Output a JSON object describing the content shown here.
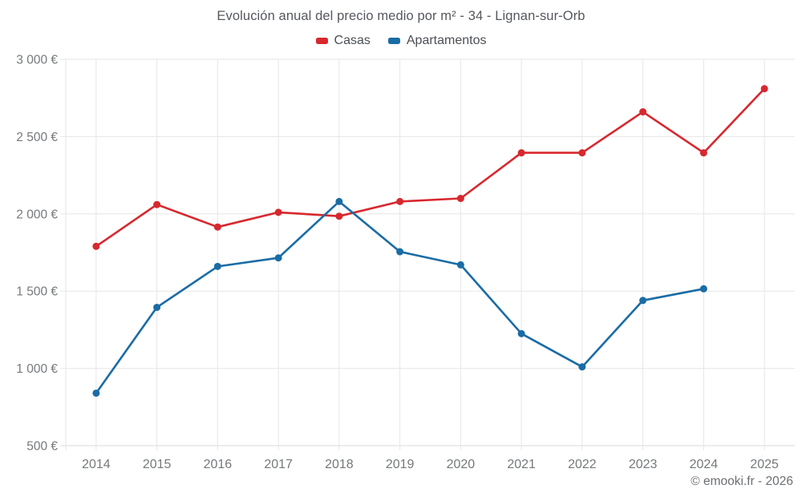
{
  "chart_data": {
    "type": "line",
    "title": "Evolución anual del precio medio por m² - 34 - Lignan-sur-Orb",
    "footer": "© emooki.fr - 2026",
    "categories": [
      "2014",
      "2015",
      "2016",
      "2017",
      "2018",
      "2019",
      "2020",
      "2021",
      "2022",
      "2023",
      "2024",
      "2025"
    ],
    "series": [
      {
        "name": "Casas",
        "color": "#d7282e",
        "values": [
          1790,
          2060,
          1915,
          2010,
          1985,
          2080,
          2100,
          2395,
          2395,
          2660,
          2395,
          2810
        ]
      },
      {
        "name": "Apartamentos",
        "color": "#1a6ca5",
        "values": [
          840,
          1395,
          1660,
          1715,
          2080,
          1755,
          1670,
          1225,
          1010,
          1440,
          1515,
          null
        ]
      }
    ],
    "y_ticks": [
      {
        "value": 500,
        "label": "500 €"
      },
      {
        "value": 1000,
        "label": "1 000 €"
      },
      {
        "value": 1500,
        "label": "1 500 €"
      },
      {
        "value": 2000,
        "label": "2 000 €"
      },
      {
        "value": 2500,
        "label": "2 500 €"
      },
      {
        "value": 3000,
        "label": "3 000 €"
      }
    ],
    "ylim": [
      500,
      3000
    ],
    "grid": true,
    "legend_position": "top",
    "colors": {
      "grid": "#e6e6e6",
      "axis_bottom": "#d9d9d9",
      "tick_label": "#75797c"
    }
  }
}
